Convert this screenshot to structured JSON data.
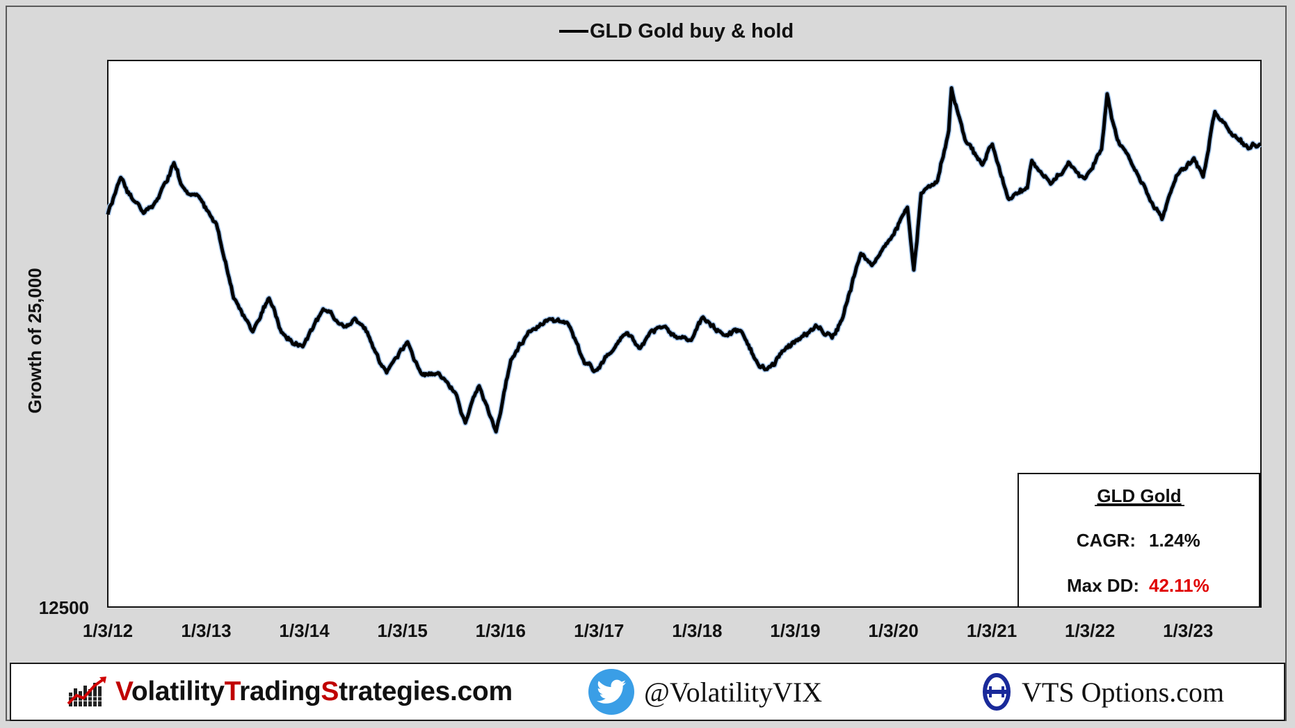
{
  "chart_data": {
    "type": "line",
    "legend": "GLD Gold buy & hold",
    "legend_position": "top-center",
    "ylabel": "Growth of 25,000",
    "ylabel_bottom_tick": "12500",
    "ylim": [
      12500,
      36000
    ],
    "grid": false,
    "x_tick_labels": [
      "1/3/12",
      "1/3/13",
      "1/3/14",
      "1/3/15",
      "1/3/16",
      "1/3/17",
      "1/3/18",
      "1/3/19",
      "1/3/20",
      "1/3/21",
      "1/3/22",
      "1/3/23"
    ],
    "series": [
      {
        "name": "GLD Gold buy & hold",
        "color": "#000000",
        "x": [
          "2012-01-03",
          "2012-02-20",
          "2012-05-15",
          "2012-07-10",
          "2012-09-05",
          "2012-10-05",
          "2012-12-15",
          "2013-02-10",
          "2013-04-15",
          "2013-06-25",
          "2013-08-25",
          "2013-10-10",
          "2013-12-28",
          "2014-03-14",
          "2014-05-10",
          "2014-07-10",
          "2014-09-15",
          "2014-11-05",
          "2015-01-22",
          "2015-03-15",
          "2015-05-15",
          "2015-07-20",
          "2015-08-25",
          "2015-10-15",
          "2015-12-17",
          "2016-02-10",
          "2016-04-15",
          "2016-07-06",
          "2016-09-10",
          "2016-11-10",
          "2016-12-15",
          "2017-02-20",
          "2017-04-15",
          "2017-06-05",
          "2017-07-10",
          "2017-09-07",
          "2017-10-20",
          "2017-12-12",
          "2018-01-25",
          "2018-04-10",
          "2018-06-15",
          "2018-08-15",
          "2018-09-20",
          "2018-11-15",
          "2019-01-20",
          "2019-03-20",
          "2019-05-20",
          "2019-06-25",
          "2019-09-04",
          "2019-10-15",
          "2019-12-15",
          "2020-02-24",
          "2020-03-19",
          "2020-04-15",
          "2020-06-15",
          "2020-07-27",
          "2020-08-06",
          "2020-09-25",
          "2020-11-29",
          "2021-01-05",
          "2021-03-08",
          "2021-05-15",
          "2021-06-01",
          "2021-08-10",
          "2021-10-15",
          "2021-12-15",
          "2022-02-15",
          "2022-03-08",
          "2022-04-15",
          "2022-06-15",
          "2022-08-15",
          "2022-09-28",
          "2022-11-20",
          "2023-01-25",
          "2023-02-28",
          "2023-04-13",
          "2023-06-15",
          "2023-08-15",
          "2023-09-30"
        ],
        "values": [
          29400,
          31000,
          29400,
          30100,
          31600,
          30600,
          30000,
          29000,
          25800,
          24300,
          25800,
          24300,
          23700,
          25300,
          24700,
          24900,
          23700,
          22600,
          23900,
          22500,
          22600,
          21700,
          20400,
          22000,
          20000,
          23100,
          24300,
          24900,
          24700,
          23000,
          22600,
          23500,
          24300,
          23600,
          24300,
          24600,
          24100,
          24000,
          25000,
          24200,
          24400,
          23000,
          22700,
          23500,
          24000,
          24600,
          24100,
          24800,
          27700,
          27200,
          28200,
          29700,
          27000,
          30300,
          30800,
          33000,
          34800,
          32600,
          31500,
          32400,
          30000,
          30500,
          31700,
          30700,
          31600,
          30900,
          32200,
          34600,
          32600,
          31400,
          30000,
          29200,
          31000,
          31800,
          31000,
          33800,
          32800,
          32200,
          32400
        ]
      }
    ]
  },
  "stats_box": {
    "title": "GLD Gold",
    "cagr_label": "CAGR:",
    "cagr_value": "1.24%",
    "maxdd_label": "Max DD:",
    "maxdd_value": "42.11%"
  },
  "footer": {
    "site_parts": [
      {
        "text": "V",
        "hl": true
      },
      {
        "text": "olatility",
        "hl": false
      },
      {
        "text": "T",
        "hl": true
      },
      {
        "text": "rading",
        "hl": false
      },
      {
        "text": "S",
        "hl": true
      },
      {
        "text": "trategies.com",
        "hl": false
      }
    ],
    "twitter_handle": "@VolatilityVIX",
    "options_site": "VTS Options.com",
    "icons": [
      "bar-chart-logo-icon",
      "twitter-bird-icon",
      "theta-logo-icon"
    ]
  },
  "colors": {
    "background": "#d9d9d9",
    "plot_bg": "#ffffff",
    "line": "#000000",
    "line_glow": "#a8c8ee",
    "maxdd_red": "#e00000",
    "twitter_blue": "#3a9ee6",
    "brand_red": "#c00000",
    "theta_navy": "#1a2a9a"
  }
}
